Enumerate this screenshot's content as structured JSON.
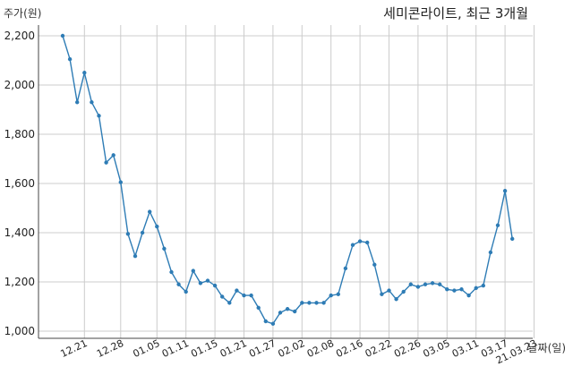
{
  "chart_data": {
    "type": "line",
    "title": "세미콘라이트, 최근 3개월",
    "ylabel": "주가(원)",
    "xlabel": "날짜(일)",
    "ylim": [
      1000,
      2200
    ],
    "yticks": [
      1000,
      1200,
      1400,
      1600,
      1800,
      2000,
      2200
    ],
    "ytick_labels": [
      "1,000",
      "1,200",
      "1,400",
      "1,600",
      "1,800",
      "2,000",
      "2,200"
    ],
    "xtick_labels": [
      "12.21",
      "12.28",
      "01.05",
      "01.11",
      "01.15",
      "01.21",
      "01.27",
      "02.02",
      "02.08",
      "02.16",
      "02.22",
      "02.26",
      "03.05",
      "03.11",
      "03.17",
      "21.03.23"
    ],
    "xtick_index": [
      3,
      8,
      13,
      17,
      21,
      25,
      29,
      33,
      37,
      41,
      45,
      49,
      53,
      57,
      61,
      65
    ],
    "grid": true,
    "color": "#2e7cb5",
    "series": [
      {
        "values": [
          2200,
          2105,
          1930,
          2050,
          1930,
          1875,
          1685,
          1715,
          1605,
          1395,
          1305,
          1400,
          1485,
          1425,
          1335,
          1240,
          1190,
          1160,
          1245,
          1195,
          1205,
          1185,
          1140,
          1115,
          1165,
          1145,
          1145,
          1095,
          1040,
          1030,
          1075,
          1090,
          1080,
          1115,
          1115,
          1115,
          1115,
          1145,
          1150,
          1255,
          1350,
          1365,
          1360,
          1270,
          1150,
          1165,
          1130,
          1160,
          1190,
          1180,
          1190,
          1195,
          1190,
          1170,
          1165,
          1170,
          1145,
          1175,
          1185,
          1320,
          1430,
          1570,
          1375
        ]
      }
    ]
  }
}
